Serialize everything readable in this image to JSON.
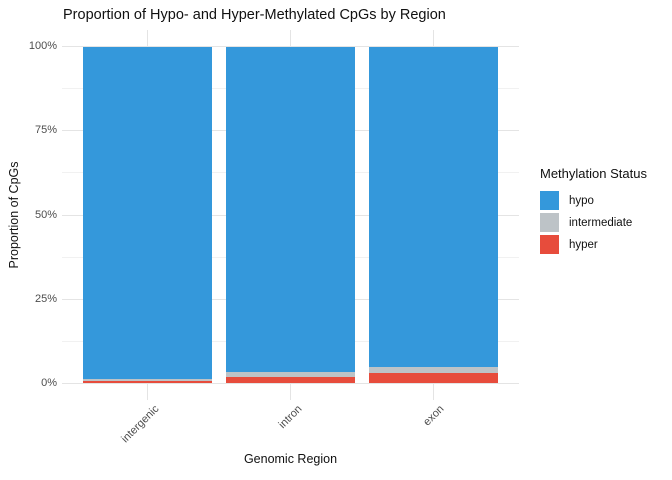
{
  "chart_data": {
    "type": "bar",
    "stacked": true,
    "title": "Proportion of Hypo- and Hyper-Methylated CpGs by Region",
    "xlabel": "Genomic Region",
    "ylabel": "Proportion of CpGs",
    "categories": [
      "intergenic",
      "intron",
      "exon"
    ],
    "series": [
      {
        "name": "hypo",
        "color": "#3498db",
        "values": [
          98.9,
          96.8,
          95.1
        ]
      },
      {
        "name": "intermediate",
        "color": "#bdc3c7",
        "values": [
          0.5,
          1.4,
          1.8
        ]
      },
      {
        "name": "hyper",
        "color": "#e74c3c",
        "values": [
          0.6,
          1.8,
          3.1
        ]
      }
    ],
    "stack_bottom_to_top": [
      "hyper",
      "intermediate",
      "hypo"
    ],
    "ylim": [
      0,
      100
    ],
    "y_axis": {
      "ticks": [
        {
          "value": 0,
          "label": "0%"
        },
        {
          "value": 25,
          "label": "25%"
        },
        {
          "value": 50,
          "label": "50%"
        },
        {
          "value": 75,
          "label": "75%"
        },
        {
          "value": 100,
          "label": "100%"
        }
      ]
    },
    "legend": {
      "title": "Methylation Status",
      "position": "right",
      "entries": [
        "hypo",
        "intermediate",
        "hyper"
      ]
    },
    "grid": true
  }
}
